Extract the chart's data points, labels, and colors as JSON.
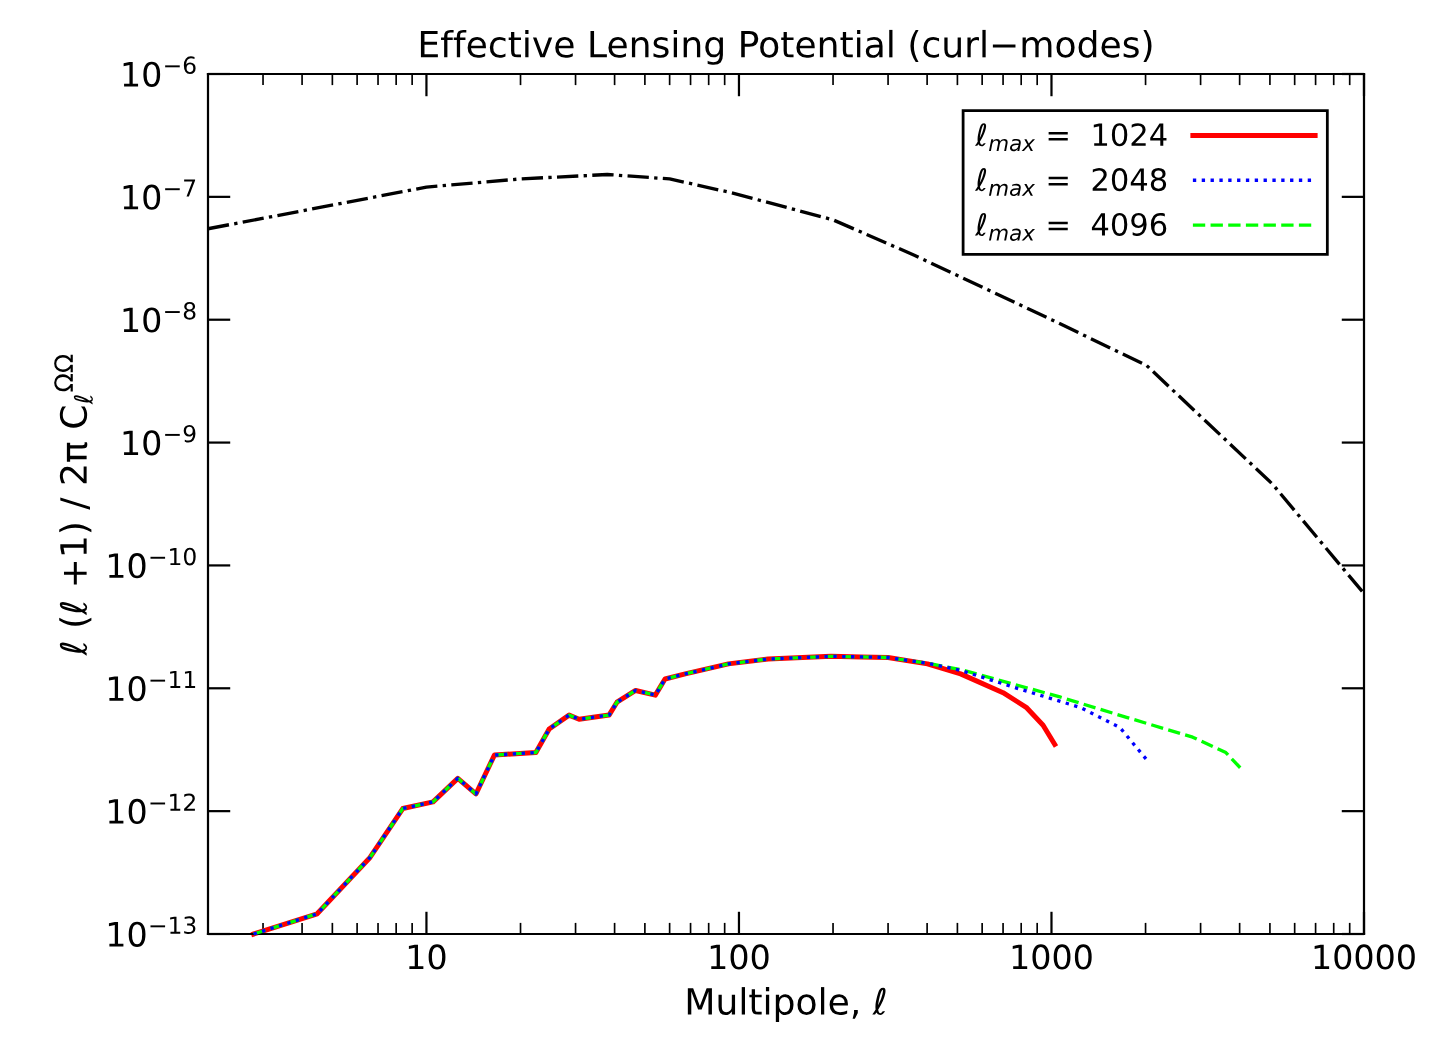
{
  "chart_data": {
    "type": "line",
    "title": "Effective Lensing Potential (curl−modes)",
    "xlabel": "Multipole, ℓ",
    "ylabel": "ℓ (ℓ +1) / 2π C$_{ℓ}$$^{ΩΩ}$",
    "log": "xy",
    "grid": false,
    "legend": "top right",
    "xlim": [
      2,
      10000
    ],
    "xticks": [
      10,
      100,
      1000,
      10000
    ],
    "ylim": [
      1e-13,
      1e-06
    ],
    "yticks": [
      {
        "value": 1e-13,
        "label": "10$^{−13}$"
      },
      {
        "value": 1e-12,
        "label": "10$^{−12}$"
      },
      {
        "value": 1e-11,
        "label": "10$^{−11}$"
      },
      {
        "value": 1e-10,
        "label": "10$^{−10}$"
      },
      {
        "value": 1e-09,
        "label": "10$^{−9}$"
      },
      {
        "value": 1e-08,
        "label": "10$^{−8}$"
      },
      {
        "value": 1e-07,
        "label": "10$^{−7}$"
      },
      {
        "value": 1e-06,
        "label": "10$^{−6}$"
      }
    ],
    "series": [
      {
        "name": "ℓ$_{max}$ =  1024",
        "color": "#ff0000",
        "line_style": "solid",
        "x": [
          2.8,
          4.47,
          6.6,
          8.4,
          10.5,
          12.6,
          14.4,
          16.5,
          22.4,
          24.7,
          28.6,
          30.8,
          38.4,
          40.7,
          46.7,
          54,
          58,
          67.3,
          92.5,
          124,
          197,
          246,
          300,
          401,
          512,
          700,
          830,
          940,
          1024
        ],
        "values": [
          1e-13,
          1.46e-13,
          4.2e-13,
          1.05e-12,
          1.19e-12,
          1.85e-12,
          1.38e-12,
          2.86e-12,
          3e-12,
          4.66e-12,
          6.05e-12,
          5.6e-12,
          6.05e-12,
          7.7e-12,
          9.6e-12,
          8.8e-12,
          1.19e-11,
          1.31e-11,
          1.58e-11,
          1.73e-11,
          1.82e-11,
          1.8e-11,
          1.78e-11,
          1.58e-11,
          1.31e-11,
          9.2e-12,
          7e-12,
          5e-12,
          3.5e-12
        ]
      },
      {
        "name": "ℓ$_{max}$ =  2048",
        "color": "#0000ff",
        "line_style": "dotted",
        "x": [
          2.8,
          4.47,
          6.6,
          8.4,
          10.5,
          12.6,
          14.4,
          16.5,
          22.4,
          24.7,
          28.6,
          30.8,
          38.4,
          40.7,
          46.7,
          54,
          58,
          67.3,
          92.5,
          124,
          197,
          246,
          300,
          401,
          512,
          757,
          1233,
          1655,
          2048
        ],
        "values": [
          1e-13,
          1.46e-13,
          4.2e-13,
          1.05e-12,
          1.19e-12,
          1.85e-12,
          1.38e-12,
          2.86e-12,
          3e-12,
          4.66e-12,
          6.05e-12,
          5.6e-12,
          6.05e-12,
          7.7e-12,
          9.6e-12,
          8.8e-12,
          1.19e-11,
          1.31e-11,
          1.58e-11,
          1.73e-11,
          1.82e-11,
          1.8e-11,
          1.78e-11,
          1.6e-11,
          1.4e-11,
          1.02e-11,
          7e-12,
          4.8e-12,
          2.5e-12
        ]
      },
      {
        "name": "ℓ$_{max}$ =  4096",
        "color": "#00ff00",
        "line_style": "dashed",
        "x": [
          2.8,
          4.47,
          6.6,
          8.4,
          10.5,
          12.6,
          14.4,
          16.5,
          22.4,
          24.7,
          28.6,
          30.8,
          38.4,
          40.7,
          46.7,
          54,
          58,
          67.3,
          92.5,
          124,
          197,
          246,
          300,
          401,
          512,
          757,
          1064,
          1738,
          2830,
          3613,
          4096
        ],
        "values": [
          1e-13,
          1.46e-13,
          4.2e-13,
          1.05e-12,
          1.19e-12,
          1.85e-12,
          1.38e-12,
          2.86e-12,
          3e-12,
          4.66e-12,
          6.05e-12,
          5.6e-12,
          6.05e-12,
          7.7e-12,
          9.6e-12,
          8.8e-12,
          1.19e-11,
          1.31e-11,
          1.58e-11,
          1.73e-11,
          1.82e-11,
          1.8e-11,
          1.78e-11,
          1.6e-11,
          1.42e-11,
          1.08e-11,
          8.5e-12,
          5.8e-12,
          4e-12,
          3e-12,
          2.14e-12
        ]
      },
      {
        "color": "#000000",
        "line_style": "dashdot",
        "x": [
          2,
          10,
          20,
          37.9,
          60,
          94.6,
          200,
          364,
          1000,
          2014,
          5093,
          10000
        ],
        "values": [
          5.5e-08,
          1.2e-07,
          1.4e-07,
          1.52e-07,
          1.4e-07,
          1.08e-07,
          6.5e-08,
          3.35e-08,
          1e-08,
          4.25e-09,
          4.6e-10,
          5.9e-11
        ]
      }
    ]
  }
}
